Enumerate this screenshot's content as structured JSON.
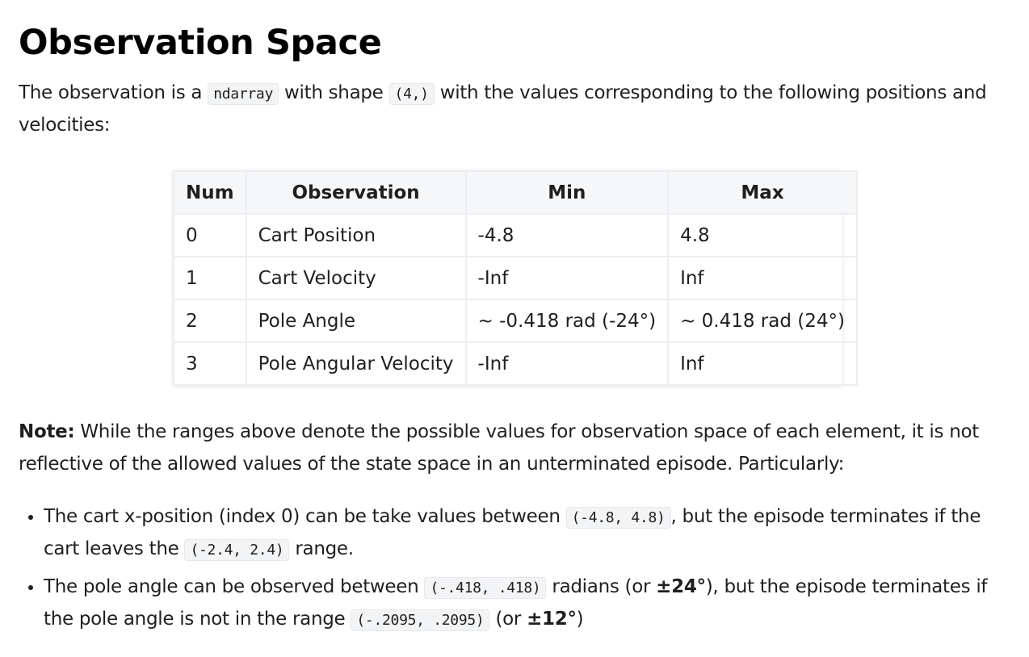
{
  "heading": "Observation Space",
  "intro": {
    "text1": "The observation is a ",
    "code1": "ndarray",
    "text2": " with shape ",
    "code2": "(4,)",
    "text3": " with the values corresponding to the following positions and velocities:"
  },
  "table": {
    "headers": [
      "Num",
      "Observation",
      "Min",
      "Max"
    ],
    "rows": [
      [
        "0",
        "Cart Position",
        "-4.8",
        "4.8"
      ],
      [
        "1",
        "Cart Velocity",
        "-Inf",
        "Inf"
      ],
      [
        "2",
        "Pole Angle",
        "~ -0.418 rad (-24°)",
        "~ 0.418 rad (24°)"
      ],
      [
        "3",
        "Pole Angular Velocity",
        "-Inf",
        "Inf"
      ]
    ]
  },
  "note": {
    "label": "Note:",
    "text": " While the ranges above denote the possible values for observation space of each element, it is not reflective of the allowed values of the state space in an unterminated episode. Particularly:"
  },
  "bullets": [
    {
      "t1": "The cart x-position (index 0) can be take values between ",
      "c1": "(-4.8, 4.8)",
      "t2": ", but the episode terminates if the cart leaves the ",
      "c2": "(-2.4, 2.4)",
      "t3": " range.",
      "b1": "",
      "t4": ""
    },
    {
      "t1": "The pole angle can be observed between ",
      "c1": "(-.418, .418)",
      "t2": " radians (or ",
      "b0": "±24°",
      "t2b": "), but the episode terminates if the pole angle is not in the range ",
      "c2": "(-.2095, .2095)",
      "t3": " (or ",
      "b1": "±12°",
      "t4": ")"
    }
  ]
}
